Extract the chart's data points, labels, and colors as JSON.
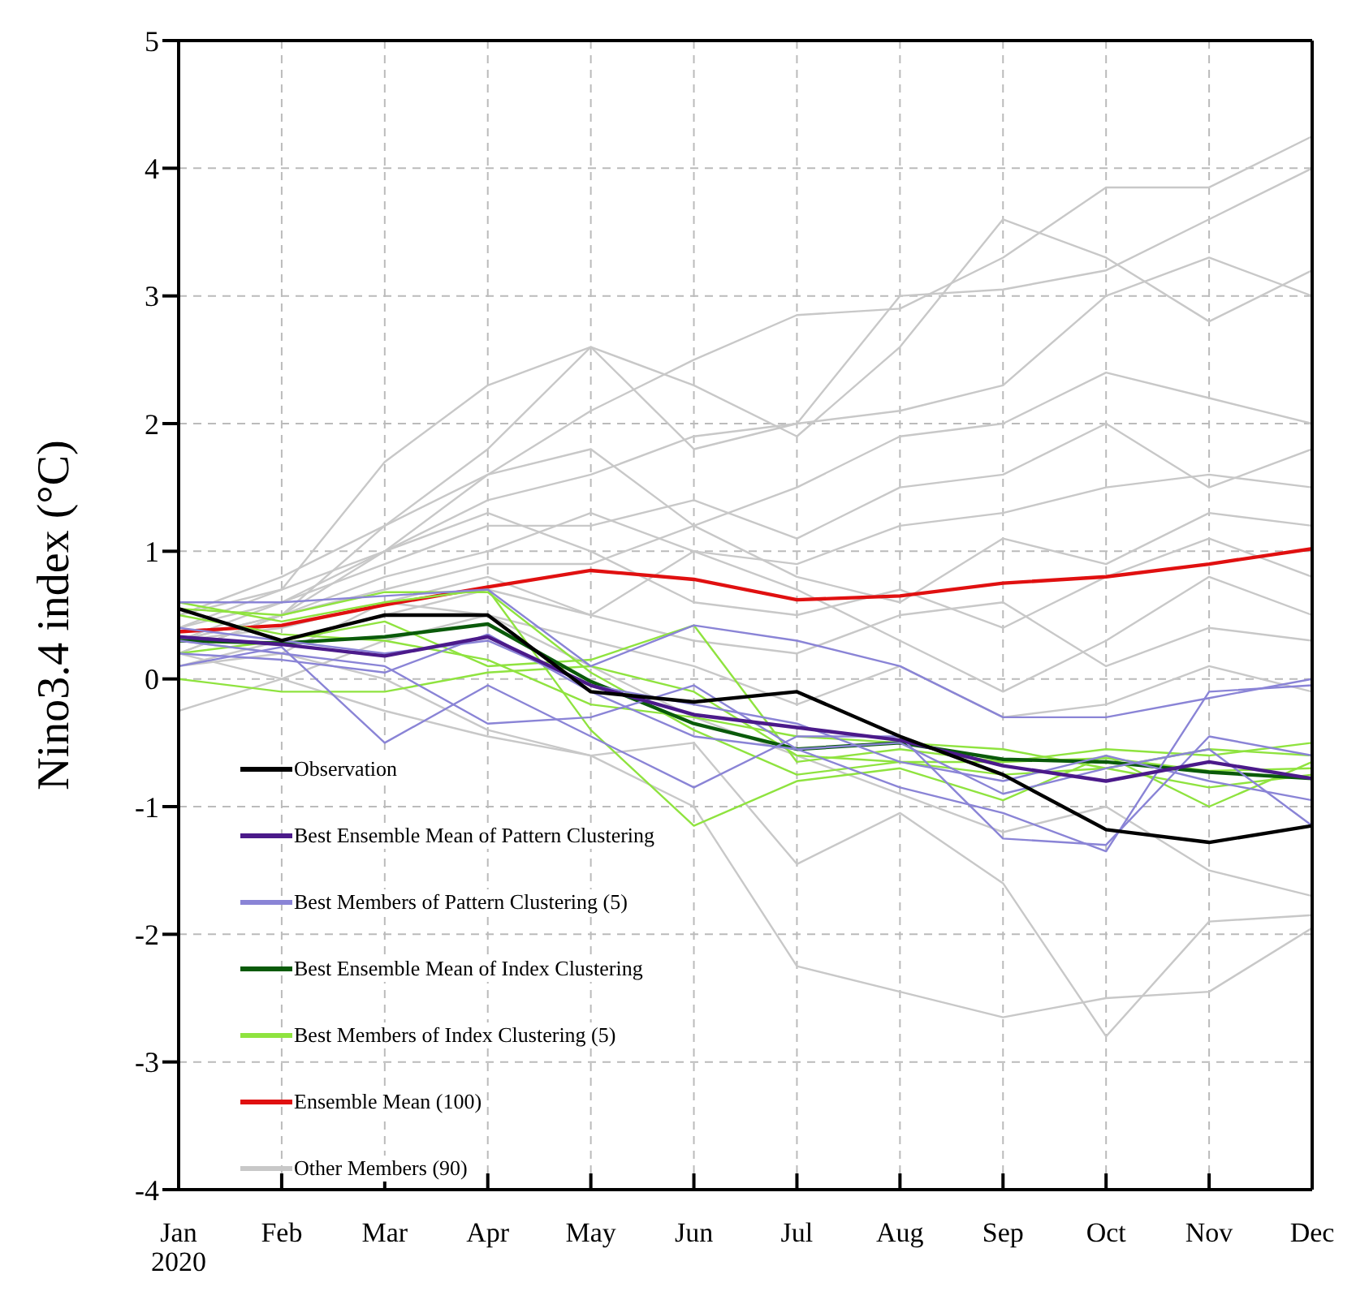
{
  "chart_data": {
    "type": "line",
    "ylabel": "Nino3.4 index (°C)",
    "categories": [
      "Jan\n2020",
      "Feb",
      "Mar",
      "Apr",
      "May",
      "Jun",
      "Jul",
      "Aug",
      "Sep",
      "Oct",
      "Nov",
      "Dec"
    ],
    "ylim": [
      -4,
      5
    ],
    "yticks": [
      -4,
      -3,
      -2,
      -1,
      0,
      1,
      2,
      3,
      4,
      5
    ],
    "grid": true,
    "legend": "bottom left",
    "marker": "none",
    "line_style": "solid",
    "series": [
      {
        "name": "Observation",
        "color": "#000000",
        "values": [
          0.55,
          0.3,
          0.5,
          0.5,
          -0.1,
          -0.18,
          -0.1,
          -0.45,
          -0.75,
          -1.18,
          -1.28,
          -1.15
        ]
      },
      {
        "name": "Best Ensemble Mean of Pattern Clustering",
        "color": "#4b1a8a",
        "values": [
          0.33,
          0.27,
          0.18,
          0.33,
          -0.05,
          -0.28,
          -0.38,
          -0.48,
          -0.68,
          -0.8,
          -0.65,
          -0.78
        ]
      },
      {
        "name": "Best Members of Pattern Clustering (5)",
        "color": "#8a84d6",
        "values": [
          0.6,
          0.6,
          0.65,
          0.7,
          0.1,
          0.42,
          0.3,
          0.1,
          -0.3,
          -0.3,
          -0.15,
          0.0
        ]
      },
      {
        "color": "#8a84d6",
        "values": [
          0.1,
          0.25,
          -0.5,
          -0.05,
          -0.45,
          -0.85,
          -0.45,
          -0.45,
          -1.25,
          -1.3,
          -0.45,
          -0.6
        ]
      },
      {
        "color": "#8a84d6",
        "values": [
          0.3,
          0.2,
          0.1,
          -0.35,
          -0.3,
          -0.05,
          -0.55,
          -0.85,
          -1.05,
          -1.35,
          -0.1,
          -0.05
        ]
      },
      {
        "color": "#8a84d6",
        "values": [
          0.2,
          0.15,
          0.05,
          0.35,
          -0.1,
          -0.45,
          -0.55,
          -0.5,
          -0.9,
          -0.7,
          -0.55,
          -1.15
        ]
      },
      {
        "color": "#8a84d6",
        "values": [
          0.4,
          0.3,
          0.2,
          0.3,
          -0.05,
          -0.2,
          -0.35,
          -0.65,
          -0.8,
          -0.6,
          -0.8,
          -0.95
        ]
      },
      {
        "name": "Best Ensemble Mean of Index Clustering",
        "color": "#0a5a0a",
        "values": [
          0.3,
          0.28,
          0.33,
          0.43,
          -0.02,
          -0.35,
          -0.55,
          -0.5,
          -0.63,
          -0.65,
          -0.73,
          -0.78
        ]
      },
      {
        "name": "Best Members of Index Clustering (5)",
        "color": "#8fe33f",
        "values": [
          0.55,
          0.5,
          0.68,
          0.68,
          0.05,
          -0.4,
          -0.75,
          -0.65,
          -0.65,
          -0.55,
          -0.6,
          -0.5
        ]
      },
      {
        "color": "#8fe33f",
        "values": [
          0.6,
          0.45,
          0.6,
          0.7,
          -0.4,
          -1.15,
          -0.8,
          -0.7,
          -0.95,
          -0.6,
          -1.0,
          -0.65
        ]
      },
      {
        "color": "#8fe33f",
        "values": [
          0.2,
          0.3,
          0.45,
          0.1,
          0.15,
          0.42,
          -0.65,
          -0.55,
          -0.65,
          -0.62,
          -0.72,
          -0.7
        ]
      },
      {
        "color": "#8fe33f",
        "values": [
          0.0,
          -0.1,
          -0.1,
          0.05,
          0.1,
          -0.1,
          -0.6,
          -0.65,
          -0.75,
          -0.7,
          -0.55,
          -0.6
        ]
      },
      {
        "color": "#8fe33f",
        "values": [
          0.5,
          0.35,
          0.3,
          0.15,
          -0.2,
          -0.3,
          -0.45,
          -0.5,
          -0.55,
          -0.7,
          -0.85,
          -0.75
        ]
      },
      {
        "name": "Ensemble Mean (100)",
        "color": "#e01010",
        "values": [
          0.37,
          0.42,
          0.58,
          0.72,
          0.85,
          0.78,
          0.62,
          0.65,
          0.75,
          0.8,
          0.9,
          1.02
        ]
      },
      {
        "name": "Other Members (90)",
        "color": "#c8c8c8",
        "values": [
          0.3,
          0.5,
          1.0,
          1.6,
          2.1,
          2.5,
          2.85,
          2.9,
          3.3,
          3.85,
          3.85,
          4.25
        ]
      },
      {
        "color": "#c8c8c8",
        "values": [
          0.4,
          0.7,
          1.7,
          2.3,
          2.6,
          1.8,
          2.0,
          3.0,
          3.05,
          3.2,
          3.6,
          4.0
        ]
      },
      {
        "color": "#c8c8c8",
        "values": [
          0.2,
          0.5,
          1.2,
          1.8,
          2.6,
          2.3,
          1.9,
          2.6,
          3.6,
          3.3,
          2.8,
          3.2
        ]
      },
      {
        "color": "#c8c8c8",
        "values": [
          0.3,
          0.6,
          1.0,
          1.4,
          1.6,
          1.9,
          2.0,
          2.1,
          2.3,
          3.0,
          3.3,
          3.0
        ]
      },
      {
        "color": "#c8c8c8",
        "values": [
          0.5,
          0.8,
          1.2,
          1.6,
          1.8,
          1.2,
          1.5,
          1.9,
          2.0,
          2.4,
          2.2,
          2.0
        ]
      },
      {
        "color": "#c8c8c8",
        "values": [
          0.4,
          0.6,
          0.9,
          1.2,
          1.2,
          1.4,
          1.1,
          1.5,
          1.6,
          2.0,
          1.5,
          1.8
        ]
      },
      {
        "color": "#c8c8c8",
        "values": [
          0.3,
          0.5,
          0.8,
          1.0,
          1.3,
          1.0,
          0.9,
          1.2,
          1.3,
          1.5,
          1.6,
          1.5
        ]
      },
      {
        "color": "#c8c8c8",
        "values": [
          0.2,
          0.5,
          0.7,
          0.9,
          0.9,
          1.2,
          0.8,
          0.6,
          1.1,
          0.9,
          1.3,
          1.2
        ]
      },
      {
        "color": "#c8c8c8",
        "values": [
          0.5,
          0.7,
          1.0,
          1.3,
          1.0,
          0.6,
          0.5,
          0.7,
          0.4,
          0.8,
          1.1,
          0.8
        ]
      },
      {
        "color": "#c8c8c8",
        "values": [
          0.1,
          0.3,
          0.5,
          0.7,
          0.5,
          0.3,
          0.2,
          0.5,
          0.6,
          0.1,
          0.4,
          0.3
        ]
      },
      {
        "color": "#c8c8c8",
        "values": [
          0.3,
          0.4,
          0.6,
          0.5,
          0.3,
          0.1,
          -0.2,
          0.1,
          -0.3,
          -0.2,
          0.1,
          -0.1
        ]
      },
      {
        "color": "#c8c8c8",
        "values": [
          0.3,
          0.2,
          0.0,
          -0.4,
          -0.6,
          -1.0,
          -2.25,
          -2.45,
          -2.65,
          -2.5,
          -2.45,
          -1.95
        ]
      },
      {
        "color": "#c8c8c8",
        "values": [
          0.2,
          0.0,
          -0.25,
          -0.45,
          -0.6,
          -0.5,
          -1.45,
          -1.05,
          -1.6,
          -2.8,
          -1.9,
          -1.85
        ]
      },
      {
        "color": "#c8c8c8",
        "values": [
          -0.25,
          0.0,
          0.3,
          0.5,
          0.1,
          -0.3,
          -0.6,
          -0.9,
          -1.2,
          -1.0,
          -1.5,
          -1.7
        ]
      },
      {
        "color": "#c8c8c8",
        "values": [
          0.1,
          0.2,
          0.6,
          0.8,
          0.5,
          1.0,
          0.7,
          0.3,
          -0.1,
          0.3,
          0.8,
          0.5
        ]
      }
    ]
  }
}
